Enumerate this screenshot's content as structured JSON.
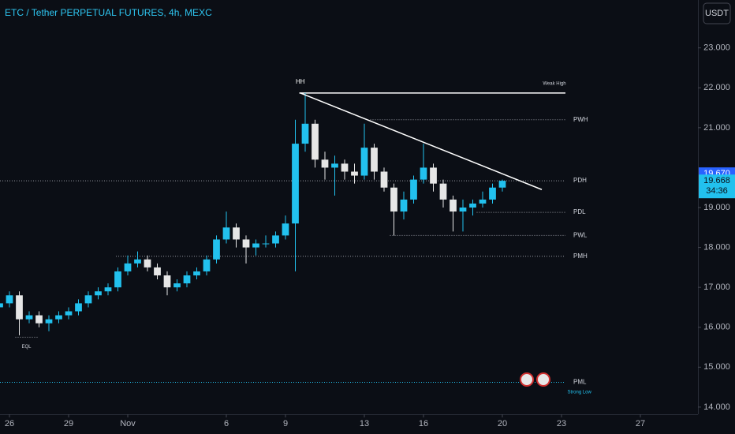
{
  "chart_data": {
    "type": "candlestick",
    "title": "ETC / Tether PERPETUAL FUTURES, 4h, MEXC",
    "currency": "USDT",
    "up_color": "#22c1ee",
    "down_color": "#e6e6e6",
    "x": [
      -0.5,
      0,
      0.5,
      1,
      1.5,
      2,
      2.5,
      3,
      3.5,
      4,
      4.5,
      5,
      5.5,
      6,
      6.5,
      7,
      7.5,
      8,
      8.5,
      9,
      9.5,
      10,
      10.5,
      11,
      11.5,
      12,
      12.5,
      13,
      13.5,
      14,
      14.5,
      15,
      15.5,
      16,
      16.5,
      17,
      17.5,
      18,
      18.5,
      19,
      19.5,
      20,
      20.5,
      21,
      21.5,
      22,
      22.5,
      23,
      23.5,
      24,
      24.5,
      25
    ],
    "open": [
      16.5,
      16.6,
      16.8,
      16.2,
      16.3,
      16.1,
      16.2,
      16.3,
      16.4,
      16.6,
      16.8,
      16.9,
      17.0,
      17.4,
      17.6,
      17.7,
      17.5,
      17.3,
      17.0,
      17.1,
      17.3,
      17.4,
      17.7,
      18.2,
      18.5,
      18.2,
      18.0,
      18.1,
      18.1,
      18.3,
      18.6,
      20.6,
      21.1,
      20.2,
      20.0,
      20.1,
      19.9,
      19.8,
      20.5,
      19.9,
      19.5,
      18.9,
      19.2,
      19.7,
      20.0,
      19.6,
      19.2,
      18.9,
      19.0,
      19.1,
      19.2,
      19.5
    ],
    "high": [
      16.8,
      16.9,
      16.9,
      16.4,
      16.4,
      16.3,
      16.4,
      16.5,
      16.7,
      16.9,
      17.0,
      17.1,
      17.5,
      17.8,
      17.9,
      17.8,
      17.6,
      17.4,
      17.2,
      17.4,
      17.5,
      17.8,
      18.3,
      18.9,
      18.6,
      18.3,
      18.2,
      18.3,
      18.4,
      18.8,
      21.2,
      21.87,
      21.2,
      20.4,
      20.3,
      20.2,
      20.1,
      21.1,
      20.6,
      20.0,
      19.6,
      19.4,
      19.8,
      20.6,
      20.1,
      19.7,
      19.3,
      19.2,
      19.2,
      19.4,
      19.6,
      19.7
    ],
    "low": [
      16.4,
      16.5,
      15.8,
      16.1,
      16.0,
      15.9,
      16.1,
      16.2,
      16.3,
      16.5,
      16.7,
      16.8,
      16.9,
      17.3,
      17.5,
      17.4,
      17.2,
      16.8,
      16.9,
      17.0,
      17.2,
      17.3,
      17.6,
      18.1,
      18.0,
      17.6,
      17.8,
      18.0,
      18.0,
      18.2,
      17.4,
      20.4,
      20.0,
      19.7,
      19.3,
      19.7,
      19.6,
      19.7,
      19.7,
      19.4,
      18.3,
      18.7,
      19.1,
      19.6,
      19.4,
      19.0,
      18.4,
      18.4,
      18.8,
      19.0,
      19.1,
      19.4
    ],
    "close": [
      16.6,
      16.8,
      16.2,
      16.3,
      16.1,
      16.2,
      16.3,
      16.4,
      16.6,
      16.8,
      16.9,
      17.0,
      17.4,
      17.6,
      17.7,
      17.5,
      17.3,
      17.0,
      17.1,
      17.3,
      17.4,
      17.7,
      18.2,
      18.5,
      18.2,
      18.0,
      18.1,
      18.1,
      18.3,
      18.6,
      20.6,
      21.1,
      20.2,
      20.0,
      20.1,
      19.9,
      19.8,
      20.5,
      19.9,
      19.5,
      18.9,
      19.2,
      19.7,
      20.0,
      19.6,
      19.2,
      18.9,
      19.0,
      19.1,
      19.2,
      19.5,
      19.67
    ],
    "xlim": [
      -0.48,
      34.92
    ],
    "ylim": [
      13.82,
      24.2
    ],
    "xticks": [
      {
        "value": 0,
        "label": "26"
      },
      {
        "value": 3,
        "label": "29"
      },
      {
        "value": 6,
        "label": "Nov"
      },
      {
        "value": 11,
        "label": "6"
      },
      {
        "value": 14,
        "label": "9"
      },
      {
        "value": 18,
        "label": "13"
      },
      {
        "value": 21,
        "label": "16"
      },
      {
        "value": 25,
        "label": "20"
      },
      {
        "value": 28,
        "label": "23"
      },
      {
        "value": 32,
        "label": "27"
      }
    ],
    "yticks": [
      {
        "value": 14,
        "label": "14.000"
      },
      {
        "value": 15,
        "label": "15.000"
      },
      {
        "value": 16,
        "label": "16.000"
      },
      {
        "value": 17,
        "label": "17.000"
      },
      {
        "value": 18,
        "label": "18.000"
      },
      {
        "value": 19,
        "label": "19.000"
      },
      {
        "value": 21,
        "label": "21.000"
      },
      {
        "value": 22,
        "label": "22.000"
      },
      {
        "value": 23,
        "label": "23.000"
      }
    ],
    "levels": [
      {
        "label": "Weak High",
        "value": 21.87,
        "x": [
          14.7,
          28.2
        ],
        "color": "#ffffff",
        "style": "solid"
      },
      {
        "label": "PWH",
        "value": 21.2,
        "x": [
          18.3,
          28.2
        ],
        "color": "#9598a1",
        "style": "dotted"
      },
      {
        "label": "PDH",
        "value": 19.67,
        "x": [
          -0.48,
          28.2
        ],
        "color": "#9598a1",
        "style": "dotted"
      },
      {
        "label": "PDL",
        "value": 18.88,
        "x": [
          23.7,
          28.2
        ],
        "color": "#9598a1",
        "style": "dotted"
      },
      {
        "label": "PWL",
        "value": 18.3,
        "x": [
          19.3,
          28.2
        ],
        "color": "#9598a1",
        "style": "dotted"
      },
      {
        "label": "PMH",
        "value": 17.78,
        "x": [
          5.4,
          28.2
        ],
        "color": "#9598a1",
        "style": "dotted"
      },
      {
        "label": "EQL",
        "value": 15.75,
        "x": [
          0.3,
          1.5
        ],
        "color": "#9598a1",
        "style": "dotted"
      },
      {
        "label": "PML",
        "value": 14.62,
        "x": [
          -0.48,
          28.2
        ],
        "color": "#22c1ee",
        "style": "dotted"
      }
    ],
    "annotations": [
      {
        "text": "HH",
        "x": 14.75,
        "y": 22.15
      },
      {
        "text": "Strong Low",
        "x": 28.3,
        "y": 14.38
      }
    ],
    "trendline": {
      "x": [
        14.75,
        27.0
      ],
      "y": [
        21.87,
        19.45
      ],
      "color": "#ffffff"
    },
    "last_price": {
      "value": 19.67,
      "label": "19.670"
    },
    "mark_price": {
      "value": 19.668,
      "label": "19.668"
    },
    "countdown": "34:36"
  }
}
